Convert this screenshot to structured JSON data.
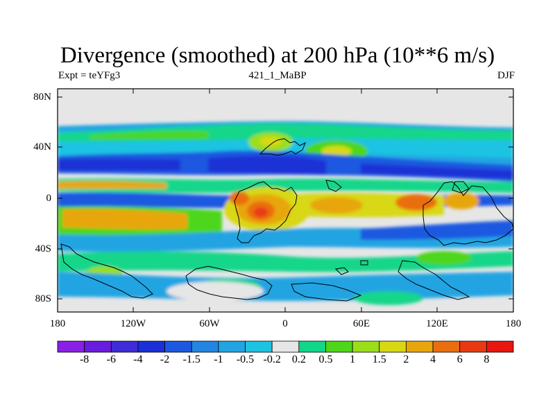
{
  "title": "Divergence (smoothed) at 200 hPa (10**6 m/s)",
  "left_label": "Expt = teYFg3",
  "center_label": "421_1_MaBP",
  "right_label": "DJF",
  "y_ticks": [
    "80N",
    "40N",
    "0",
    "40S",
    "80S"
  ],
  "x_ticks": [
    "180",
    "120W",
    "60W",
    "0",
    "60E",
    "120E",
    "180"
  ],
  "colorbar": {
    "labels": [
      "-8",
      "-6",
      "-4",
      "-2",
      "-1.5",
      "-1",
      "-0.5",
      "-0.2",
      "0.2",
      "0.5",
      "1",
      "1.5",
      "2",
      "4",
      "6",
      "8"
    ],
    "colors": [
      "#8a1fe6",
      "#6a1be0",
      "#3f2bd8",
      "#1a30d6",
      "#1c58e0",
      "#2484e2",
      "#22a4e2",
      "#1ec3e2",
      "#e6e6e6",
      "#12d68a",
      "#4ed61a",
      "#9ade1a",
      "#d8d812",
      "#e8a60e",
      "#ea6e10",
      "#e83a12",
      "#e8160e"
    ]
  }
}
